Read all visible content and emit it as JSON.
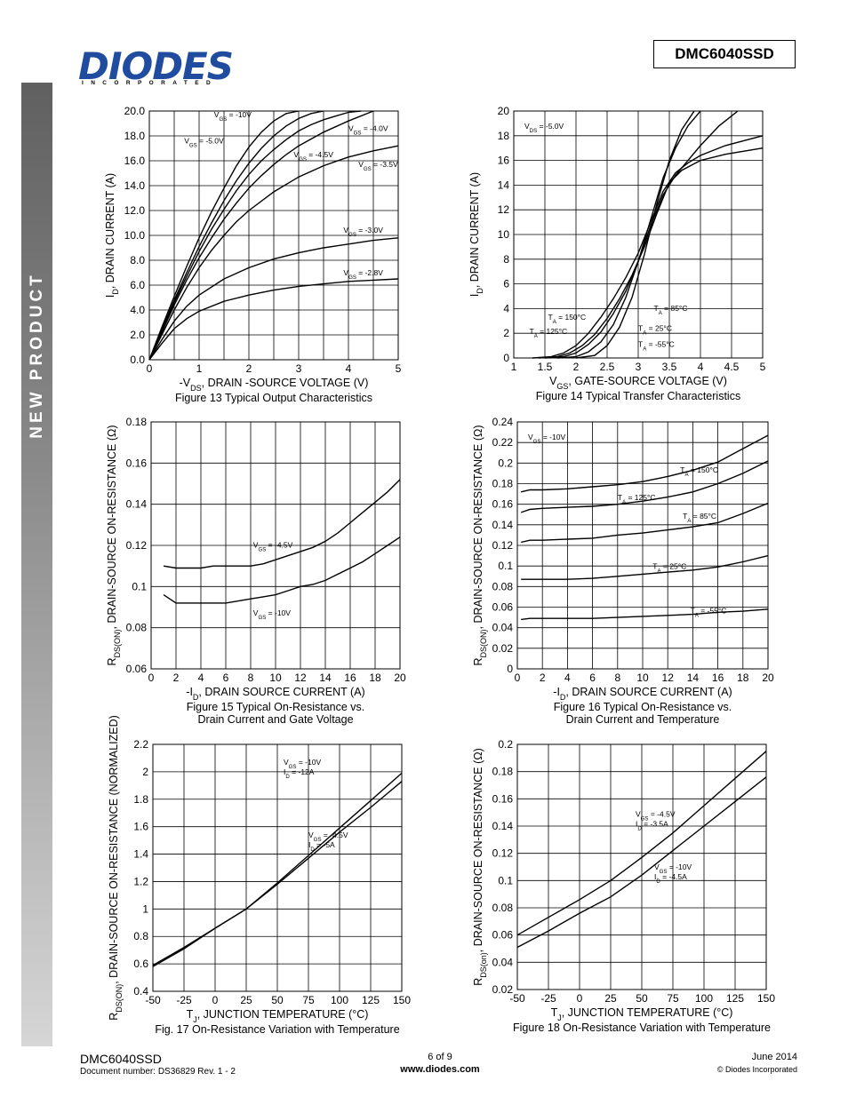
{
  "header": {
    "logo_text": "DIODES",
    "logo_subtext": "INCORPORATED",
    "part_number": "DMC6040SSD"
  },
  "sidebar": {
    "label": "NEW PRODUCT"
  },
  "footer": {
    "part_number": "DMC6040SSD",
    "document_number": "Document number: DS36829  Rev. 1 - 2",
    "page": "6 of 9",
    "url": "www.diodes.com",
    "date": "June 2014",
    "copyright": "© Diodes Incorporated"
  },
  "chart_data": [
    {
      "type": "line",
      "title": "Figure 13 Typical Output Characteristics",
      "xlabel": "-V_DS, DRAIN -SOURCE VOLTAGE (V)",
      "ylabel": "I_D, DRAIN CURRENT (A)",
      "xlim": [
        0,
        5
      ],
      "ylim": [
        0,
        20
      ],
      "xticks": [
        "0",
        "1",
        "2",
        "3",
        "4",
        "5"
      ],
      "yticks": [
        "0.0",
        "2.0",
        "4.0",
        "6.0",
        "8.0",
        "10.0",
        "12.0",
        "14.0",
        "16.0",
        "18.0",
        "20.0"
      ],
      "series": [
        {
          "name": "V_GS = -10V",
          "x": [
            0,
            0.25,
            0.5,
            0.75,
            1,
            1.25,
            1.5,
            1.75,
            2,
            2.25,
            2.5,
            2.75,
            3
          ],
          "y": [
            0,
            2.6,
            5.1,
            7.5,
            9.8,
            11.9,
            13.8,
            15.6,
            17.1,
            18.3,
            19.2,
            19.8,
            20
          ]
        },
        {
          "name": "V_GS = -5.0V",
          "x": [
            0,
            0.25,
            0.5,
            0.75,
            1,
            1.25,
            1.5,
            1.75,
            2,
            2.25,
            2.5,
            2.75,
            3,
            3.25,
            3.5
          ],
          "y": [
            0,
            2.4,
            4.8,
            7,
            9.1,
            11,
            12.8,
            14.4,
            15.8,
            17,
            18,
            18.8,
            19.4,
            19.8,
            20
          ]
        },
        {
          "name": "V_GS = -4.5V",
          "x": [
            0,
            0.25,
            0.5,
            0.75,
            1,
            1.25,
            1.5,
            1.75,
            2,
            2.25,
            2.5,
            2.75,
            3,
            3.25,
            3.5,
            3.75,
            4,
            4.25
          ],
          "y": [
            0,
            2.3,
            4.6,
            6.7,
            8.7,
            10.5,
            12.1,
            13.6,
            14.9,
            16,
            16.9,
            17.7,
            18.4,
            18.9,
            19.3,
            19.6,
            19.9,
            20
          ]
        },
        {
          "name": "V_GS = -4.0V",
          "x": [
            0,
            0.25,
            0.5,
            0.75,
            1,
            1.25,
            1.5,
            1.75,
            2,
            2.25,
            2.5,
            2.75,
            3,
            3.5,
            4,
            4.5
          ],
          "y": [
            0,
            2.2,
            4.4,
            6.4,
            8.2,
            9.8,
            11.3,
            12.6,
            13.8,
            14.8,
            15.7,
            16.5,
            17.2,
            18.3,
            19.2,
            20
          ]
        },
        {
          "name": "V_GS = -3.5V",
          "x": [
            0,
            0.25,
            0.5,
            0.75,
            1,
            1.25,
            1.5,
            1.75,
            2,
            2.5,
            3,
            3.5,
            4,
            4.5,
            5
          ],
          "y": [
            0,
            2,
            4,
            5.8,
            7.4,
            8.8,
            10,
            11.1,
            12,
            13.5,
            14.7,
            15.6,
            16.3,
            16.8,
            17.2
          ]
        },
        {
          "name": "V_GS = -3.0V",
          "x": [
            0,
            0.25,
            0.5,
            0.75,
            1,
            1.5,
            2,
            2.5,
            3,
            3.5,
            4,
            4.5,
            5
          ],
          "y": [
            0,
            1.6,
            3.1,
            4.3,
            5.2,
            6.5,
            7.4,
            8.1,
            8.6,
            9,
            9.3,
            9.6,
            9.8
          ]
        },
        {
          "name": "V_GS = -2.8V",
          "x": [
            0,
            0.25,
            0.5,
            0.75,
            1,
            1.5,
            2,
            2.5,
            3,
            3.5,
            4,
            4.5,
            5
          ],
          "y": [
            0,
            1.3,
            2.5,
            3.3,
            3.9,
            4.7,
            5.2,
            5.6,
            5.9,
            6.1,
            6.3,
            6.4,
            6.5
          ]
        }
      ]
    },
    {
      "type": "line",
      "title": "Figure 14 Typical Transfer Characteristics",
      "xlabel": "V_GS, GATE-SOURCE VOLTAGE (V)",
      "ylabel": "I_D, DRAIN CURRENT (A)",
      "xlim": [
        1,
        5
      ],
      "ylim": [
        0,
        20
      ],
      "xticks": [
        "1",
        "1.5",
        "2",
        "2.5",
        "3",
        "3.5",
        "4",
        "4.5",
        "5"
      ],
      "yticks": [
        "0",
        "2",
        "4",
        "6",
        "8",
        "10",
        "12",
        "14",
        "16",
        "18",
        "20"
      ],
      "annotations": [
        "V_DS = -5.0V"
      ],
      "series": [
        {
          "name": "T_A = 150°C",
          "x": [
            1.3,
            1.6,
            1.8,
            2.0,
            2.2,
            2.4,
            2.6,
            2.8,
            3.0,
            3.2,
            3.4,
            3.6,
            3.8,
            4.0,
            4.4,
            5.0
          ],
          "y": [
            0,
            0.1,
            0.4,
            1,
            2,
            3.3,
            4.8,
            6.5,
            8.5,
            11,
            13.5,
            15,
            15.8,
            16.4,
            17.2,
            18
          ]
        },
        {
          "name": "T_A = 125°C",
          "x": [
            1.4,
            1.7,
            1.9,
            2.1,
            2.3,
            2.5,
            2.7,
            2.9,
            3.1,
            3.3,
            3.5,
            3.7,
            4.0,
            4.4,
            5.0
          ],
          "y": [
            0,
            0.1,
            0.4,
            1,
            1.9,
            3.2,
            4.8,
            6.7,
            9,
            11.7,
            14.2,
            15.2,
            16,
            16.5,
            17
          ]
        },
        {
          "name": "T_A = 85°C",
          "x": [
            1.5,
            1.8,
            2.0,
            2.2,
            2.4,
            2.6,
            2.8,
            3.0,
            3.2,
            3.4,
            3.6,
            3.8,
            4.0,
            4.3,
            4.6
          ],
          "y": [
            0,
            0.1,
            0.4,
            1.1,
            2.1,
            3.6,
            5.4,
            7.8,
            10.7,
            13.2,
            14.8,
            16,
            17.2,
            18.8,
            20
          ]
        },
        {
          "name": "T_A = 25°C",
          "x": [
            1.7,
            2.0,
            2.2,
            2.4,
            2.6,
            2.8,
            3.0,
            3.2,
            3.4,
            3.6,
            3.8,
            4.0
          ],
          "y": [
            0,
            0.1,
            0.5,
            1.3,
            2.7,
            4.9,
            7.8,
            11.2,
            14.6,
            17,
            18.8,
            20
          ]
        },
        {
          "name": "T_A = -55°C",
          "x": [
            2.0,
            2.3,
            2.5,
            2.7,
            2.9,
            3.1,
            3.3,
            3.5,
            3.7,
            3.9
          ],
          "y": [
            0,
            0.2,
            1,
            2.5,
            4.9,
            8.4,
            12.5,
            16,
            18.5,
            20
          ]
        }
      ]
    },
    {
      "type": "line",
      "title": "Figure 15 Typical On-Resistance vs. Drain Current and Gate Voltage",
      "xlabel": "-I_D, DRAIN SOURCE CURRENT (A)",
      "ylabel": "R_DS(ON), DRAIN-SOURCE ON-RESISTANCE (Ω)",
      "xlim": [
        0,
        20
      ],
      "ylim": [
        0.06,
        0.18
      ],
      "xticks": [
        "0",
        "2",
        "4",
        "6",
        "8",
        "10",
        "12",
        "14",
        "16",
        "18",
        "20"
      ],
      "yticks": [
        "0.06",
        "0.08",
        "0.1",
        "0.12",
        "0.14",
        "0.16",
        "0.18"
      ],
      "series": [
        {
          "name": "V_GS = -4.5V",
          "x": [
            1,
            2,
            3,
            4,
            5,
            6,
            7,
            8,
            9,
            10,
            11,
            12,
            13,
            14,
            15,
            16,
            17,
            18,
            19,
            20
          ],
          "y": [
            0.11,
            0.109,
            0.109,
            0.109,
            0.11,
            0.11,
            0.11,
            0.11,
            0.111,
            0.113,
            0.115,
            0.117,
            0.119,
            0.122,
            0.126,
            0.131,
            0.136,
            0.141,
            0.146,
            0.152
          ]
        },
        {
          "name": "V_GS = -10V",
          "x": [
            1,
            2,
            3,
            4,
            5,
            6,
            7,
            8,
            9,
            10,
            11,
            12,
            13,
            14,
            15,
            16,
            17,
            18,
            19,
            20
          ],
          "y": [
            0.096,
            0.092,
            0.092,
            0.092,
            0.092,
            0.092,
            0.093,
            0.094,
            0.095,
            0.096,
            0.098,
            0.1,
            0.101,
            0.103,
            0.106,
            0.109,
            0.112,
            0.116,
            0.12,
            0.124
          ]
        }
      ]
    },
    {
      "type": "line",
      "title": "Figure 16 Typical On-Resistance vs. Drain Current and Temperature",
      "xlabel": "-I_D, DRAIN SOURCE CURRENT (A)",
      "ylabel": "R_DS(ON), DRAIN-SOURCE ON-RESISTANCE (Ω)",
      "xlim": [
        0,
        20
      ],
      "ylim": [
        0,
        0.24
      ],
      "xticks": [
        "0",
        "2",
        "4",
        "6",
        "8",
        "10",
        "12",
        "14",
        "16",
        "18",
        "20"
      ],
      "yticks": [
        "0",
        "0.02",
        "0.04",
        "0.06",
        "0.08",
        "0.1",
        "0.12",
        "0.14",
        "0.16",
        "0.18",
        "0.2",
        "0.22",
        "0.24"
      ],
      "annotations": [
        "V_GS = -10V"
      ],
      "series": [
        {
          "name": "T_A = 150°C",
          "x": [
            0.3,
            1,
            2,
            4,
            6,
            8,
            10,
            12,
            14,
            16,
            18,
            20
          ],
          "y": [
            0.172,
            0.174,
            0.174,
            0.175,
            0.177,
            0.179,
            0.182,
            0.187,
            0.193,
            0.201,
            0.214,
            0.227
          ]
        },
        {
          "name": "T_A = 125°C",
          "x": [
            0.3,
            1,
            2,
            4,
            6,
            8,
            10,
            12,
            14,
            16,
            18,
            20
          ],
          "y": [
            0.152,
            0.155,
            0.156,
            0.157,
            0.158,
            0.16,
            0.163,
            0.167,
            0.172,
            0.18,
            0.19,
            0.202
          ]
        },
        {
          "name": "T_A = 85°C",
          "x": [
            0.3,
            1,
            2,
            4,
            6,
            8,
            10,
            12,
            14,
            16,
            18,
            20
          ],
          "y": [
            0.123,
            0.125,
            0.125,
            0.126,
            0.127,
            0.13,
            0.132,
            0.135,
            0.138,
            0.142,
            0.151,
            0.161
          ]
        },
        {
          "name": "T_A = 25°C",
          "x": [
            0.3,
            1,
            2,
            4,
            6,
            8,
            10,
            12,
            14,
            16,
            18,
            20
          ],
          "y": [
            0.087,
            0.087,
            0.087,
            0.087,
            0.088,
            0.09,
            0.092,
            0.094,
            0.096,
            0.099,
            0.104,
            0.11
          ]
        },
        {
          "name": "T_A = -55°C",
          "x": [
            0.3,
            1,
            2,
            4,
            6,
            8,
            10,
            12,
            14,
            16,
            18,
            20
          ],
          "y": [
            0.048,
            0.049,
            0.049,
            0.049,
            0.049,
            0.05,
            0.051,
            0.052,
            0.053,
            0.055,
            0.056,
            0.058
          ]
        }
      ]
    },
    {
      "type": "line",
      "title": "Fig. 17 On-Resistance Variation with Temperature",
      "xlabel": "T_J, JUNCTION TEMPERATURE (°C)",
      "ylabel": "R_DS(ON), DRAIN-SOURCE ON-RESISTANCE (NORMALIZED)",
      "xlim": [
        -50,
        150
      ],
      "ylim": [
        0.4,
        2.2
      ],
      "xticks": [
        "-50",
        "-25",
        "0",
        "25",
        "50",
        "75",
        "100",
        "125",
        "150"
      ],
      "yticks": [
        "0.4",
        "0.6",
        "0.8",
        "1",
        "1.2",
        "1.4",
        "1.6",
        "1.8",
        "2",
        "2.2"
      ],
      "series": [
        {
          "name": "V_GS = -10V, I_D = -12A",
          "x": [
            -50,
            -25,
            0,
            25,
            50,
            75,
            100,
            125,
            150
          ],
          "y": [
            0.59,
            0.72,
            0.86,
            1.0,
            1.19,
            1.39,
            1.59,
            1.79,
            1.99
          ]
        },
        {
          "name": "V_GS = -4.5V, I_D = -5A",
          "x": [
            -50,
            -25,
            0,
            25,
            50,
            75,
            100,
            125,
            150
          ],
          "y": [
            0.58,
            0.71,
            0.86,
            1.0,
            1.18,
            1.37,
            1.56,
            1.74,
            1.93
          ]
        }
      ]
    },
    {
      "type": "line",
      "title": "Figure 18 On-Resistance Variation with Temperature",
      "xlabel": "T_J, JUNCTION TEMPERATURE (°C)",
      "ylabel": "R_DS(on), DRAIN-SOURCE ON-RESISTANCE (Ω)",
      "xlim": [
        -50,
        150
      ],
      "ylim": [
        0.02,
        0.2
      ],
      "xticks": [
        "-50",
        "-25",
        "0",
        "25",
        "50",
        "75",
        "100",
        "125",
        "150"
      ],
      "yticks": [
        "0.02",
        "0.04",
        "0.06",
        "0.08",
        "0.1",
        "0.12",
        "0.14",
        "0.16",
        "0.18",
        "0.2"
      ],
      "series": [
        {
          "name": "V_GS = -4.5V, I_D = -3.5A",
          "x": [
            -50,
            -25,
            0,
            25,
            50,
            75,
            100,
            125,
            150
          ],
          "y": [
            0.06,
            0.073,
            0.086,
            0.1,
            0.117,
            0.135,
            0.155,
            0.175,
            0.195
          ]
        },
        {
          "name": "V_GS = -10V, I_D = -4.5A",
          "x": [
            -50,
            -25,
            0,
            25,
            50,
            75,
            100,
            125,
            150
          ],
          "y": [
            0.051,
            0.063,
            0.076,
            0.088,
            0.104,
            0.122,
            0.14,
            0.158,
            0.176
          ]
        }
      ]
    }
  ]
}
